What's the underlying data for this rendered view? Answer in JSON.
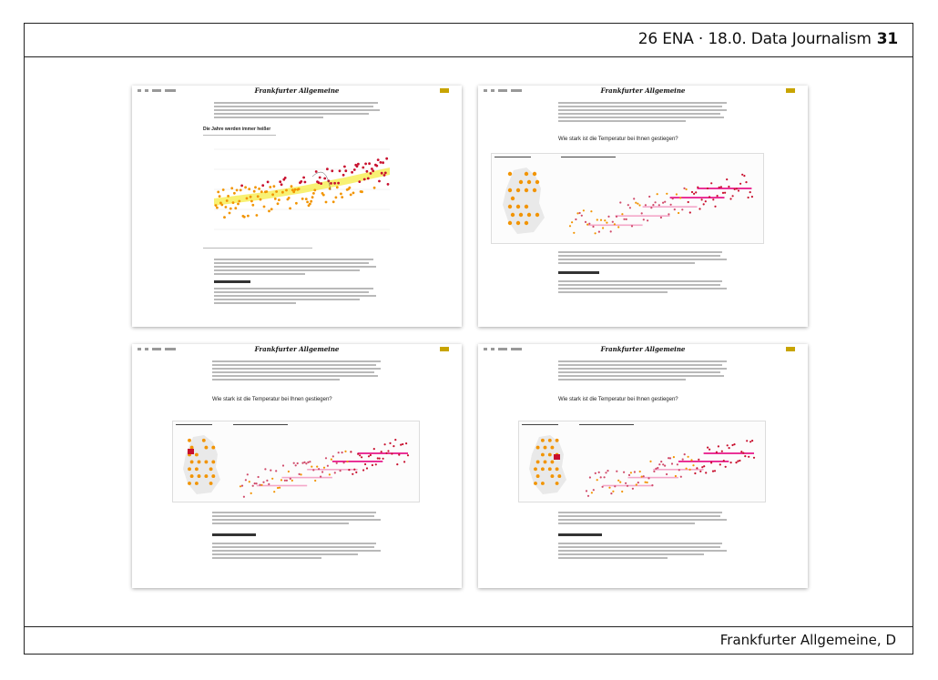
{
  "header": {
    "title": "26 ENA · 18.0. Data Journalism",
    "page_number": "31"
  },
  "footer": {
    "source": "Frankfurter Allgemeine, D"
  },
  "screenshots": [
    {
      "masthead": "Frankfurter Allgemeine",
      "chart_heading": "Die Jahre werden immer heißer"
    },
    {
      "masthead": "Frankfurter Allgemeine",
      "question": "Wie stark ist die Temperatur bei Ihnen gestiegen?"
    },
    {
      "masthead": "Frankfurter Allgemeine",
      "question": "Wie stark ist die Temperatur bei Ihnen gestiegen?"
    },
    {
      "masthead": "Frankfurter Allgemeine",
      "question": "Wie stark ist die Temperatur bei Ihnen gestiegen?"
    }
  ],
  "colors": {
    "accent": "#c8a400",
    "dot_red": "#c8102e",
    "dot_orange": "#f29400",
    "pink": "#e6007e"
  }
}
